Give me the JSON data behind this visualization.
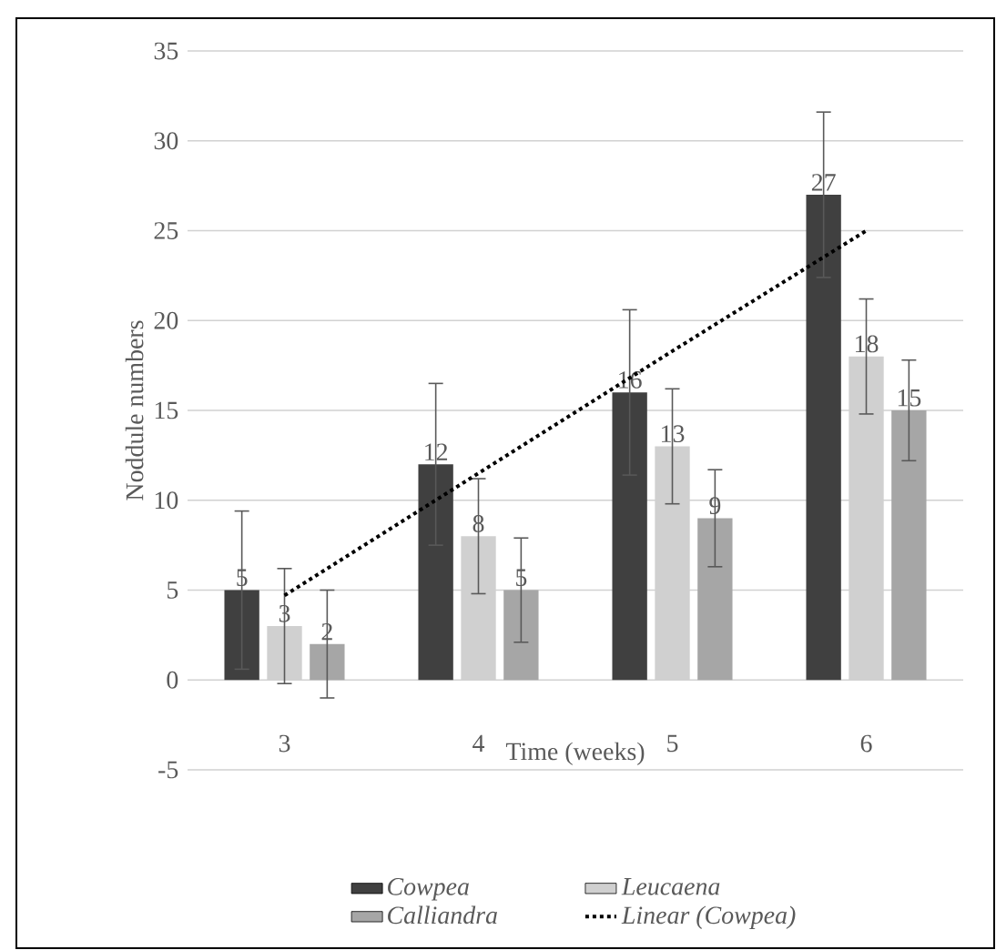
{
  "chart_data": {
    "type": "bar",
    "xlabel": "Time (weeks)",
    "ylabel": "Noddule numbers",
    "categories": [
      "3",
      "4",
      "5",
      "6"
    ],
    "ylim": [
      -5,
      35
    ],
    "yticks": [
      -5,
      0,
      5,
      10,
      15,
      20,
      25,
      30,
      35
    ],
    "grid": "y",
    "legend": "bottom",
    "series": [
      {
        "name": "Cowpea",
        "color": "#404040",
        "values": [
          5,
          12,
          16,
          27
        ],
        "errors": [
          4.4,
          4.5,
          4.6,
          4.6
        ],
        "value_labels": [
          "5",
          "12",
          "16",
          "27"
        ]
      },
      {
        "name": "Leucaena",
        "color": "#d0d0d0",
        "values": [
          3,
          8,
          13,
          18
        ],
        "errors": [
          3.2,
          3.2,
          3.2,
          3.2
        ],
        "value_labels": [
          "3",
          "8",
          "13",
          "18"
        ]
      },
      {
        "name": "Calliandra",
        "color": "#a6a6a6",
        "values": [
          2,
          5,
          9,
          15
        ],
        "errors": [
          3,
          2.9,
          2.7,
          2.8
        ],
        "value_labels": [
          "2",
          "5",
          "9",
          "15"
        ]
      },
      {
        "name": "Linear (Cowpea)",
        "type": "line",
        "color": "#000000",
        "line_style": "dotted",
        "values": [
          4.7,
          11.5,
          18.3,
          25
        ]
      }
    ]
  }
}
